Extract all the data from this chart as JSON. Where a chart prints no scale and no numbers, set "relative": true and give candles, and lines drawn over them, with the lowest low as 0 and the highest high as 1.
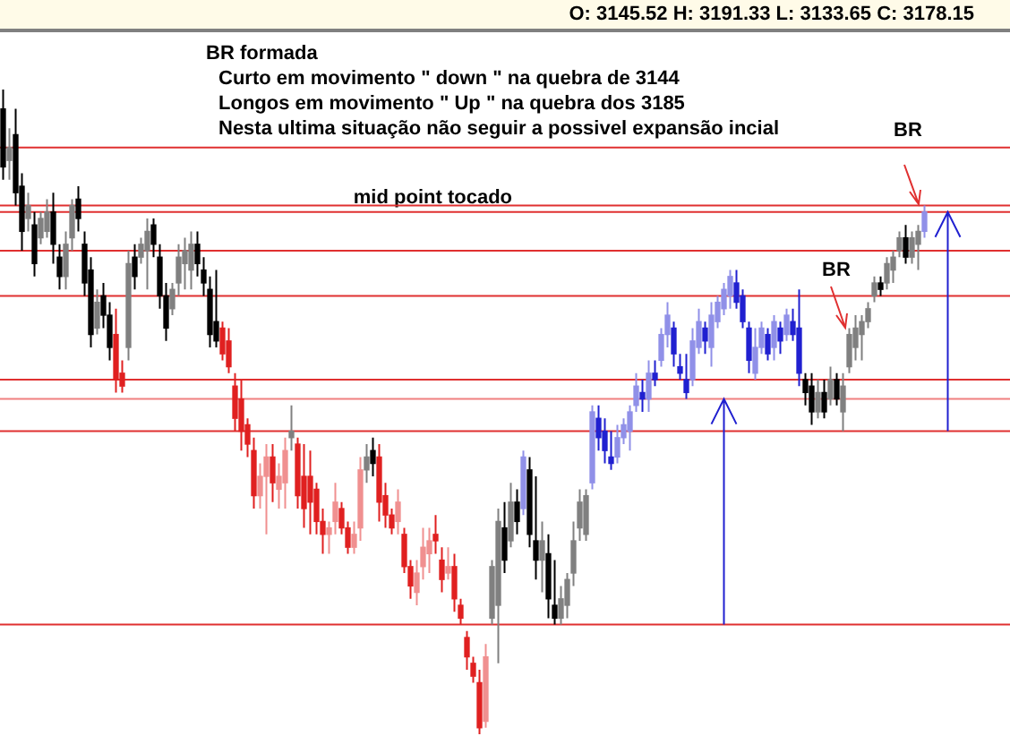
{
  "chart_data": {
    "type": "candlestick",
    "relative": true,
    "title": "O: 3145.52  H: 3191.33  L: 3133.65  C: 3178.15",
    "annotations": [
      {
        "text": "BR formada"
      },
      {
        "text": "Curto em movimento  \" down \" na quebra de 3144"
      },
      {
        "text": "Longos em movimento  \" Up \"  na quebra dos 3185"
      },
      {
        "text": "Nesta ultima situação  não seguir a  possivel expansão incial"
      },
      {
        "text": "BR"
      },
      {
        "text": "BR"
      }
    ],
    "ref_lines": [
      {
        "axis": "y",
        "value": 0.91,
        "color": "#e03030"
      },
      {
        "axis": "y",
        "value": 0.81,
        "label": "mid point tocado",
        "color": "#e03030"
      },
      {
        "axis": "y",
        "value": 0.82,
        "color": "#e03030"
      },
      {
        "axis": "y",
        "value": 0.52,
        "color": "#f08080"
      },
      {
        "axis": "y",
        "value": 0.17,
        "color": "#e03030"
      },
      {
        "axis": "y",
        "value": 0.47,
        "color": "#e03030"
      },
      {
        "axis": "y",
        "value": 0.55,
        "color": "#e03030"
      },
      {
        "axis": "y",
        "value": 0.68,
        "color": "#e03030"
      },
      {
        "axis": "y",
        "value": 0.75,
        "color": "#e03030"
      }
    ],
    "categories": [
      null,
      null,
      null,
      null,
      null,
      null,
      null,
      null,
      null,
      null,
      null,
      null,
      null,
      null,
      null,
      null,
      null,
      null,
      null,
      null,
      null,
      null,
      null,
      null,
      null,
      null,
      null,
      null,
      null,
      null,
      null,
      null,
      null,
      null,
      null,
      null,
      null,
      null,
      null,
      null,
      null,
      null,
      null,
      null,
      null,
      null,
      null,
      null,
      null,
      null,
      null,
      null,
      null,
      null,
      null,
      null,
      null,
      null,
      null,
      null,
      null,
      null,
      null,
      null,
      null,
      null,
      null,
      null,
      null,
      null,
      null,
      null,
      null,
      null,
      null,
      null,
      null,
      null,
      null,
      null,
      null,
      null,
      null,
      null,
      null,
      null,
      null,
      null,
      null,
      null,
      null,
      null,
      null,
      null,
      null,
      null,
      null,
      null,
      null,
      null,
      null,
      null,
      null,
      null,
      null,
      null,
      null,
      null,
      null,
      null,
      null,
      null,
      null,
      null,
      null,
      null,
      null,
      null,
      null,
      null,
      null,
      null,
      null,
      null,
      null,
      null,
      null,
      null,
      null,
      null,
      null,
      null,
      null,
      null,
      null,
      null,
      null,
      null,
      null,
      null,
      null,
      null,
      null,
      null,
      null,
      null,
      null,
      null
    ],
    "ohlc": [
      [
        0.97,
        1.0,
        0.86,
        0.88
      ],
      [
        0.89,
        0.94,
        0.86,
        0.91
      ],
      [
        0.93,
        0.97,
        0.82,
        0.84
      ],
      [
        0.85,
        0.87,
        0.75,
        0.78
      ],
      [
        0.8,
        0.84,
        0.78,
        0.82
      ],
      [
        0.79,
        0.81,
        0.71,
        0.73
      ],
      [
        0.77,
        0.81,
        0.76,
        0.8
      ],
      [
        0.78,
        0.83,
        0.77,
        0.81
      ],
      [
        0.81,
        0.84,
        0.73,
        0.76
      ],
      [
        0.74,
        0.76,
        0.69,
        0.71
      ],
      [
        0.71,
        0.78,
        0.69,
        0.76
      ],
      [
        0.77,
        0.83,
        0.75,
        0.82
      ],
      [
        0.83,
        0.85,
        0.78,
        0.8
      ],
      [
        0.76,
        0.78,
        0.68,
        0.7
      ],
      [
        0.72,
        0.74,
        0.6,
        0.62
      ],
      [
        0.63,
        0.69,
        0.62,
        0.67
      ],
      [
        0.68,
        0.7,
        0.63,
        0.65
      ],
      [
        0.65,
        0.67,
        0.58,
        0.6
      ],
      [
        0.62,
        0.66,
        0.53,
        0.55
      ],
      [
        0.56,
        0.58,
        0.53,
        0.54
      ],
      [
        0.6,
        0.75,
        0.58,
        0.73
      ],
      [
        0.74,
        0.76,
        0.69,
        0.71
      ],
      [
        0.74,
        0.77,
        0.73,
        0.76
      ],
      [
        0.75,
        0.8,
        0.69,
        0.78
      ],
      [
        0.79,
        0.8,
        0.74,
        0.76
      ],
      [
        0.74,
        0.76,
        0.66,
        0.68
      ],
      [
        0.68,
        0.7,
        0.61,
        0.63
      ],
      [
        0.66,
        0.7,
        0.65,
        0.69
      ],
      [
        0.7,
        0.76,
        0.68,
        0.74
      ],
      [
        0.73,
        0.77,
        0.69,
        0.75
      ],
      [
        0.72,
        0.78,
        0.69,
        0.76
      ],
      [
        0.76,
        0.78,
        0.71,
        0.73
      ],
      [
        0.72,
        0.74,
        0.68,
        0.7
      ],
      [
        0.69,
        0.71,
        0.6,
        0.62
      ],
      [
        0.64,
        0.72,
        0.6,
        0.61
      ],
      [
        0.63,
        0.64,
        0.58,
        0.59
      ],
      [
        0.61,
        0.63,
        0.56,
        0.57
      ],
      [
        0.54,
        0.56,
        0.47,
        0.49
      ],
      [
        0.52,
        0.55,
        0.44,
        0.47
      ],
      [
        0.48,
        0.49,
        0.43,
        0.45
      ],
      [
        0.44,
        0.46,
        0.35,
        0.37
      ],
      [
        0.37,
        0.42,
        0.35,
        0.4
      ],
      [
        0.4,
        0.45,
        0.31,
        0.43
      ],
      [
        0.43,
        0.45,
        0.36,
        0.39
      ],
      [
        0.38,
        0.42,
        0.35,
        0.4
      ],
      [
        0.39,
        0.46,
        0.35,
        0.44
      ],
      [
        0.46,
        0.51,
        0.44,
        0.47
      ],
      [
        0.45,
        0.46,
        0.35,
        0.37
      ],
      [
        0.4,
        0.45,
        0.32,
        0.35
      ],
      [
        0.4,
        0.44,
        0.31,
        0.36
      ],
      [
        0.38,
        0.39,
        0.31,
        0.33
      ],
      [
        0.33,
        0.35,
        0.28,
        0.31
      ],
      [
        0.31,
        0.33,
        0.28,
        0.32
      ],
      [
        0.33,
        0.39,
        0.31,
        0.36
      ],
      [
        0.35,
        0.36,
        0.31,
        0.32
      ],
      [
        0.32,
        0.33,
        0.28,
        0.29
      ],
      [
        0.29,
        0.33,
        0.28,
        0.31
      ],
      [
        0.32,
        0.43,
        0.3,
        0.41
      ],
      [
        0.41,
        0.45,
        0.39,
        0.43
      ],
      [
        0.44,
        0.46,
        0.4,
        0.42
      ],
      [
        0.43,
        0.45,
        0.33,
        0.36
      ],
      [
        0.37,
        0.39,
        0.32,
        0.34
      ],
      [
        0.34,
        0.35,
        0.31,
        0.32
      ],
      [
        0.33,
        0.38,
        0.31,
        0.36
      ],
      [
        0.31,
        0.32,
        0.25,
        0.26
      ],
      [
        0.26,
        0.27,
        0.21,
        0.23
      ],
      [
        0.22,
        0.27,
        0.2,
        0.25
      ],
      [
        0.26,
        0.32,
        0.24,
        0.29
      ],
      [
        0.28,
        0.32,
        0.25,
        0.3
      ],
      [
        0.31,
        0.34,
        0.28,
        0.3
      ],
      [
        0.27,
        0.29,
        0.22,
        0.24
      ],
      [
        0.25,
        0.29,
        0.24,
        0.26
      ],
      [
        0.26,
        0.28,
        0.19,
        0.21
      ],
      [
        0.2,
        0.21,
        0.17,
        0.18
      ],
      [
        0.15,
        0.16,
        0.1,
        0.12
      ],
      [
        0.11,
        0.12,
        0.08,
        0.09
      ],
      [
        0.08,
        0.1,
        0.0,
        0.01
      ],
      [
        0.02,
        0.14,
        0.01,
        0.12
      ],
      [
        0.18,
        0.27,
        0.17,
        0.26
      ],
      [
        0.2,
        0.35,
        0.11,
        0.33
      ],
      [
        0.32,
        0.36,
        0.25,
        0.27
      ],
      [
        0.3,
        0.39,
        0.29,
        0.36
      ],
      [
        0.36,
        0.38,
        0.31,
        0.33
      ],
      [
        0.35,
        0.44,
        0.34,
        0.43
      ],
      [
        0.41,
        0.43,
        0.29,
        0.31
      ],
      [
        0.3,
        0.4,
        0.24,
        0.27
      ],
      [
        0.27,
        0.33,
        0.22,
        0.3
      ],
      [
        0.28,
        0.31,
        0.18,
        0.21
      ],
      [
        0.2,
        0.27,
        0.17,
        0.18
      ],
      [
        0.18,
        0.23,
        0.17,
        0.21
      ],
      [
        0.2,
        0.25,
        0.18,
        0.24
      ],
      [
        0.25,
        0.33,
        0.23,
        0.3
      ],
      [
        0.32,
        0.38,
        0.3,
        0.36
      ],
      [
        0.31,
        0.38,
        0.3,
        0.37
      ],
      [
        0.39,
        0.51,
        0.38,
        0.5
      ],
      [
        0.49,
        0.51,
        0.44,
        0.46
      ],
      [
        0.47,
        0.49,
        0.42,
        0.44
      ],
      [
        0.43,
        0.47,
        0.41,
        0.42
      ],
      [
        0.43,
        0.48,
        0.42,
        0.46
      ],
      [
        0.46,
        0.49,
        0.45,
        0.48
      ],
      [
        0.47,
        0.51,
        0.44,
        0.5
      ],
      [
        0.51,
        0.56,
        0.5,
        0.54
      ],
      [
        0.53,
        0.55,
        0.5,
        0.52
      ],
      [
        0.52,
        0.58,
        0.5,
        0.56
      ],
      [
        0.56,
        0.58,
        0.54,
        0.55
      ],
      [
        0.58,
        0.63,
        0.57,
        0.62
      ],
      [
        0.62,
        0.67,
        0.6,
        0.65
      ],
      [
        0.63,
        0.64,
        0.57,
        0.59
      ],
      [
        0.57,
        0.59,
        0.55,
        0.56
      ],
      [
        0.55,
        0.59,
        0.52,
        0.53
      ],
      [
        0.55,
        0.63,
        0.54,
        0.61
      ],
      [
        0.6,
        0.66,
        0.59,
        0.64
      ],
      [
        0.63,
        0.64,
        0.59,
        0.61
      ],
      [
        0.6,
        0.67,
        0.57,
        0.65
      ],
      [
        0.64,
        0.68,
        0.63,
        0.67
      ],
      [
        0.66,
        0.7,
        0.65,
        0.69
      ],
      [
        0.68,
        0.72,
        0.66,
        0.71
      ],
      [
        0.7,
        0.72,
        0.66,
        0.67
      ],
      [
        0.68,
        0.69,
        0.63,
        0.64
      ],
      [
        0.63,
        0.64,
        0.56,
        0.58
      ],
      [
        0.56,
        0.63,
        0.55,
        0.6
      ],
      [
        0.6,
        0.64,
        0.59,
        0.63
      ],
      [
        0.62,
        0.63,
        0.58,
        0.59
      ],
      [
        0.6,
        0.65,
        0.58,
        0.64
      ],
      [
        0.63,
        0.64,
        0.59,
        0.61
      ],
      [
        0.62,
        0.66,
        0.61,
        0.65
      ],
      [
        0.64,
        0.66,
        0.61,
        0.62
      ],
      [
        0.63,
        0.69,
        0.54,
        0.56
      ],
      [
        0.55,
        0.56,
        0.51,
        0.53
      ],
      [
        0.54,
        0.56,
        0.48,
        0.5
      ],
      [
        0.5,
        0.55,
        0.49,
        0.53
      ],
      [
        0.53,
        0.55,
        0.49,
        0.5
      ],
      [
        0.52,
        0.57,
        0.51,
        0.55
      ],
      [
        0.55,
        0.56,
        0.51,
        0.52
      ],
      [
        0.5,
        0.56,
        0.47,
        0.54
      ],
      [
        0.57,
        0.63,
        0.56,
        0.62
      ],
      [
        0.6,
        0.65,
        0.58,
        0.63
      ],
      [
        0.62,
        0.65,
        0.58,
        0.64
      ],
      [
        0.64,
        0.67,
        0.63,
        0.66
      ],
      [
        0.68,
        0.71,
        0.67,
        0.7
      ],
      [
        0.7,
        0.71,
        0.68,
        0.69
      ],
      [
        0.7,
        0.74,
        0.69,
        0.73
      ],
      [
        0.72,
        0.75,
        0.7,
        0.74
      ],
      [
        0.75,
        0.78,
        0.74,
        0.77
      ],
      [
        0.77,
        0.79,
        0.73,
        0.74
      ],
      [
        0.74,
        0.78,
        0.73,
        0.77
      ],
      [
        0.76,
        0.79,
        0.72,
        0.78
      ],
      [
        0.78,
        0.82,
        0.77,
        0.81
      ]
    ],
    "colors": [
      "#000000",
      "#808080",
      "#000000",
      "#000000",
      "#808080",
      "#000000",
      "#808080",
      "#808080",
      "#000000",
      "#000000",
      "#808080",
      "#808080",
      "#000000",
      "#000000",
      "#000000",
      "#808080",
      "#000000",
      "#000000",
      "#e02020",
      "#e02020",
      "#808080",
      "#000000",
      "#808080",
      "#808080",
      "#000000",
      "#000000",
      "#000000",
      "#808080",
      "#808080",
      "#808080",
      "#808080",
      "#000000",
      "#000000",
      "#000000",
      "#000000",
      "#e02020",
      "#e02020",
      "#e02020",
      "#e02020",
      "#e02020",
      "#e02020",
      "#f09090",
      "#f09090",
      "#e02020",
      "#f09090",
      "#f09090",
      "#808080",
      "#e02020",
      "#e02020",
      "#e02020",
      "#e02020",
      "#e02020",
      "#f09090",
      "#f09090",
      "#e02020",
      "#e02020",
      "#f09090",
      "#f09090",
      "#808080",
      "#000000",
      "#e02020",
      "#e02020",
      "#e02020",
      "#f09090",
      "#e02020",
      "#e02020",
      "#f09090",
      "#f09090",
      "#f09090",
      "#e02020",
      "#e02020",
      "#f09090",
      "#e02020",
      "#e02020",
      "#e02020",
      "#e02020",
      "#e02020",
      "#f09090",
      "#808080",
      "#808080",
      "#000000",
      "#808080",
      "#000000",
      "#9090e8",
      "#000000",
      "#000000",
      "#808080",
      "#000000",
      "#000000",
      "#808080",
      "#808080",
      "#808080",
      "#808080",
      "#808080",
      "#9090e8",
      "#2020d0",
      "#2020d0",
      "#2020d0",
      "#9090e8",
      "#9090e8",
      "#9090e8",
      "#9090e8",
      "#2020d0",
      "#9090e8",
      "#2020d0",
      "#9090e8",
      "#9090e8",
      "#2020d0",
      "#2020d0",
      "#2020d0",
      "#9090e8",
      "#9090e8",
      "#2020d0",
      "#9090e8",
      "#9090e8",
      "#9090e8",
      "#9090e8",
      "#2020d0",
      "#2020d0",
      "#2020d0",
      "#9090e8",
      "#9090e8",
      "#2020d0",
      "#9090e8",
      "#2020d0",
      "#9090e8",
      "#2020d0",
      "#2020d0",
      "#000000",
      "#000000",
      "#808080",
      "#000000",
      "#808080",
      "#000000",
      "#808080",
      "#808080",
      "#808080",
      "#808080",
      "#808080",
      "#808080",
      "#000000",
      "#808080",
      "#808080",
      "#808080",
      "#000000",
      "#808080",
      "#808080",
      "#9090e8"
    ]
  }
}
